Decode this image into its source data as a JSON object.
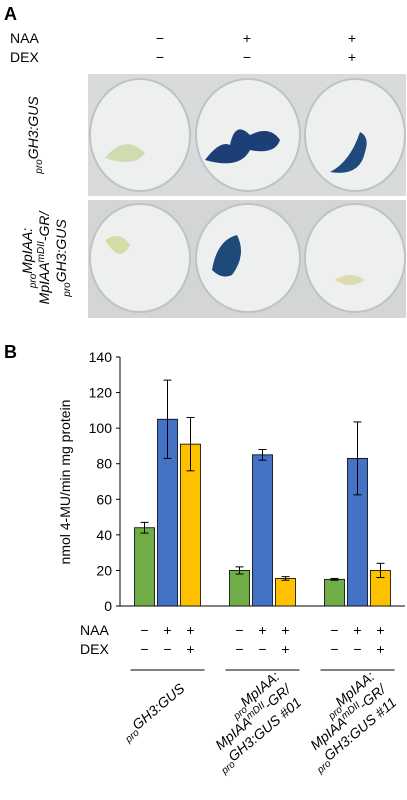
{
  "panel_a": {
    "label": "A",
    "conditions": [
      {
        "name": "NAA",
        "signs": [
          "−",
          "+",
          "+"
        ]
      },
      {
        "name": "DEX",
        "signs": [
          "−",
          "−",
          "+"
        ]
      }
    ],
    "rows": [
      [
        [
          {
            "t": "pro",
            "s": "sub"
          },
          {
            "t": "GH3:GUS"
          }
        ]
      ],
      [
        [
          {
            "t": "pro",
            "s": "sub"
          },
          {
            "t": "MpIAA:"
          }
        ],
        [
          {
            "t": "MpIAA"
          },
          {
            "t": "mDII",
            "s": "sup"
          },
          {
            "t": "-GR/"
          }
        ],
        [
          {
            "t": "pro",
            "s": "sub"
          },
          {
            "t": "GH3:GUS"
          }
        ]
      ]
    ]
  },
  "chart_data": {
    "type": "bar",
    "label": "B",
    "y_label": "nmol 4-MU/min mg protein",
    "ylim": [
      0,
      140
    ],
    "yticks": [
      0,
      20,
      40,
      60,
      80,
      100,
      120,
      140
    ],
    "series": [
      {
        "color": "#70ad47",
        "values": [
          44,
          20,
          15
        ],
        "errors": [
          3,
          2,
          0.5
        ]
      },
      {
        "color": "#4472c4",
        "values": [
          105,
          85,
          83
        ],
        "errors": [
          22,
          3,
          20.5
        ]
      },
      {
        "color": "#ffc000",
        "values": [
          91,
          15.5,
          20
        ],
        "errors": [
          15,
          1,
          4
        ]
      }
    ],
    "conditions": [
      {
        "name": "NAA",
        "signs": [
          "−",
          "+",
          "+",
          "−",
          "+",
          "+",
          "−",
          "+",
          "+"
        ]
      },
      {
        "name": "DEX",
        "signs": [
          "−",
          "−",
          "+",
          "−",
          "−",
          "+",
          "−",
          "−",
          "+"
        ]
      }
    ],
    "categories": [
      [
        [
          {
            "t": "pro",
            "s": "sub"
          },
          {
            "t": "GH3:GUS"
          }
        ]
      ],
      [
        [
          {
            "t": "pro",
            "s": "sub"
          },
          {
            "t": "MpIAA:"
          }
        ],
        [
          {
            "t": "MpIAA"
          },
          {
            "t": "mDII",
            "s": "sup"
          },
          {
            "t": "-GR/"
          }
        ],
        [
          {
            "t": "pro",
            "s": "sub"
          },
          {
            "t": "GH3:GUS #01"
          }
        ]
      ],
      [
        [
          {
            "t": "pro",
            "s": "sub"
          },
          {
            "t": "MpIAA:"
          }
        ],
        [
          {
            "t": "MpIAA"
          },
          {
            "t": "mDII",
            "s": "sup"
          },
          {
            "t": "-GR/"
          }
        ],
        [
          {
            "t": "pro",
            "s": "sub"
          },
          {
            "t": "GH3:GUS #11"
          }
        ]
      ]
    ]
  }
}
